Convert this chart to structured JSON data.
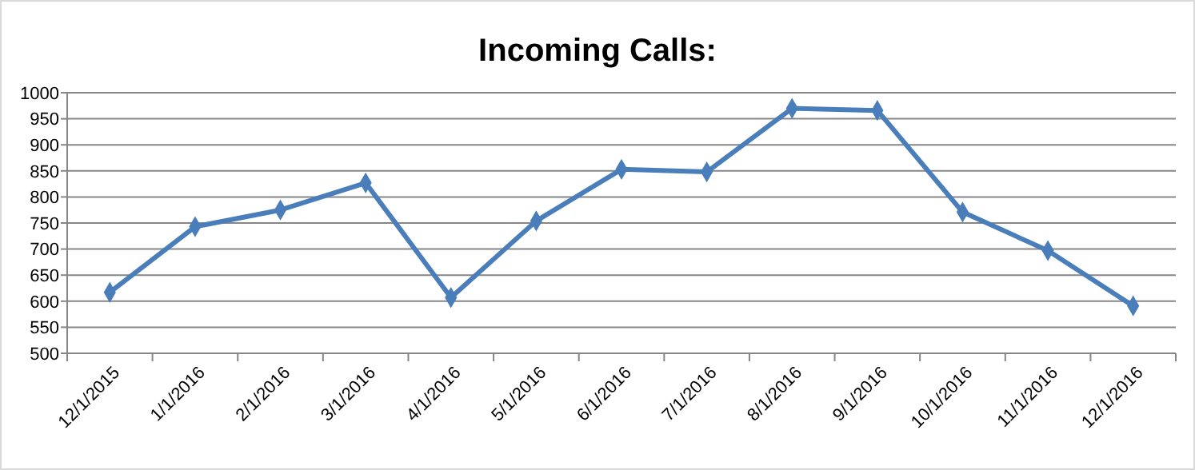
{
  "chart_data": {
    "type": "line",
    "title": "Incoming Calls:",
    "categories": [
      "12/1/2015",
      "1/1/2016",
      "2/1/2016",
      "3/1/2016",
      "4/1/2016",
      "5/1/2016",
      "6/1/2016",
      "7/1/2016",
      "8/1/2016",
      "9/1/2016",
      "10/1/2016",
      "11/1/2016",
      "12/1/2016"
    ],
    "series": [
      {
        "color": "#4a7ebb",
        "values": [
          617,
          743,
          775,
          827,
          607,
          754,
          853,
          848,
          970,
          966,
          771,
          697,
          591
        ]
      }
    ],
    "ylim": [
      500,
      1000
    ],
    "yticks": [
      500,
      550,
      600,
      650,
      700,
      750,
      800,
      850,
      900,
      950,
      1000
    ],
    "grid": "y",
    "marker": "diamond",
    "line_style": "solid"
  }
}
